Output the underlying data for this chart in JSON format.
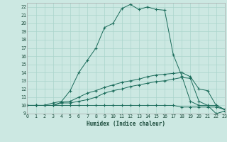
{
  "xlabel": "Humidex (Indice chaleur)",
  "background_color": "#cce8e2",
  "grid_color": "#aad4cc",
  "line_color": "#1a6b5a",
  "xlim": [
    0,
    23
  ],
  "ylim": [
    9,
    22.5
  ],
  "yticks": [
    9,
    10,
    11,
    12,
    13,
    14,
    15,
    16,
    17,
    18,
    19,
    20,
    21,
    22
  ],
  "xticks": [
    0,
    1,
    2,
    3,
    4,
    5,
    6,
    7,
    8,
    9,
    10,
    11,
    12,
    13,
    14,
    15,
    16,
    17,
    18,
    19,
    20,
    21,
    22,
    23
  ],
  "lines": [
    [
      10,
      10,
      10,
      10,
      10,
      10,
      10,
      10,
      10,
      10,
      10,
      10,
      10,
      10,
      10,
      10,
      10,
      10,
      9.8,
      9.8,
      9.8,
      9.8,
      9.8,
      9.5
    ],
    [
      10,
      10,
      10,
      10,
      10.3,
      10.3,
      10.5,
      10.7,
      11.0,
      11.5,
      11.8,
      12.0,
      12.3,
      12.5,
      12.7,
      12.9,
      13.0,
      13.2,
      13.4,
      13.3,
      10.5,
      10.0,
      10.0,
      9.5
    ],
    [
      10,
      10,
      10,
      10,
      10.4,
      10.5,
      11.0,
      11.5,
      11.8,
      12.2,
      12.5,
      12.8,
      13.0,
      13.2,
      13.5,
      13.7,
      13.8,
      13.9,
      14.0,
      13.5,
      12.0,
      11.8,
      10.0,
      9.5
    ],
    [
      10,
      10,
      10,
      10.3,
      10.5,
      11.8,
      14.0,
      15.5,
      17.0,
      19.5,
      20.0,
      21.8,
      22.3,
      21.7,
      22.0,
      21.7,
      21.6,
      16.2,
      13.6,
      10.5,
      10.0,
      10.0,
      9.0,
      9.3
    ]
  ]
}
